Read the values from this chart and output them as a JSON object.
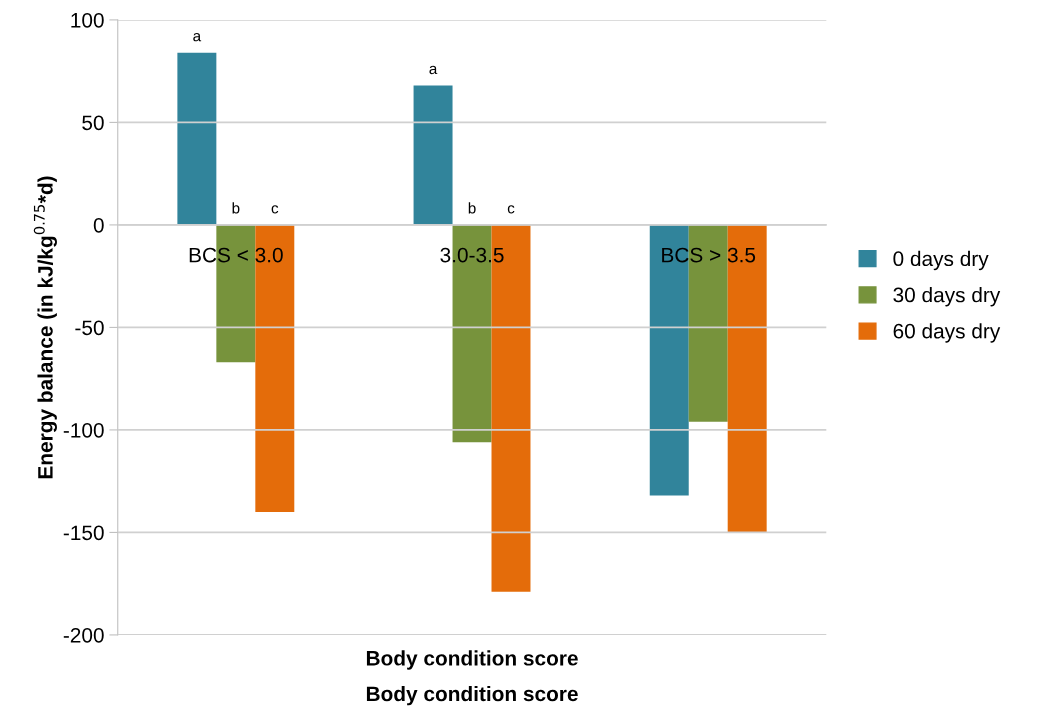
{
  "chart_data": {
    "type": "bar",
    "ylabel": "Energy balance (in kJ/kg$^{0.75}$*d)",
    "xlabel": "Body condition score",
    "categories": [
      "BCS < 3.0",
      "3.0-3.5",
      "BCS > 3.5"
    ],
    "series": [
      {
        "name": "0 days dry",
        "color": "#31849b",
        "values": [
          84,
          68,
          -132
        ]
      },
      {
        "name": "30 days dry",
        "color": "#77933c",
        "values": [
          -67,
          -106,
          -96
        ]
      },
      {
        "name": "60 days dry",
        "color": "#e46c0a",
        "values": [
          -140,
          -179,
          -150
        ]
      }
    ],
    "ylim": [
      -200,
      100
    ],
    "yticks": [
      -200,
      -150,
      -100,
      -50,
      0,
      50,
      100
    ],
    "grid": "y",
    "legend": "right",
    "annotations": [
      "a",
      "b",
      "c",
      "a",
      "b",
      "c",
      "Body condition score"
    ]
  }
}
